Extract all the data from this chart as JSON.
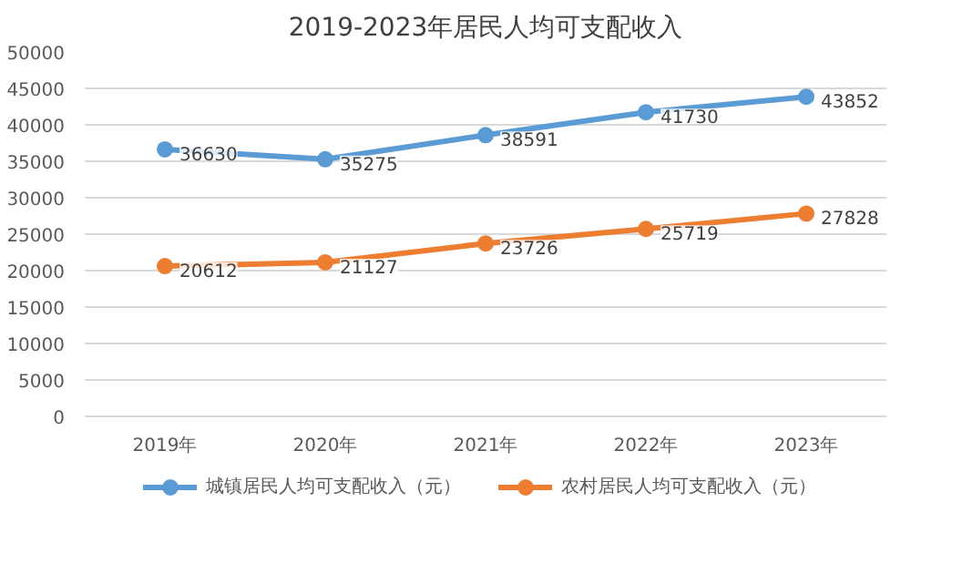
{
  "chart_data": {
    "type": "line",
    "title": "2019-2023年居民人均可支配收入",
    "categories": [
      "2019年",
      "2020年",
      "2021年",
      "2022年",
      "2023年"
    ],
    "series": [
      {
        "name": "城镇居民人均可支配收入（元）",
        "color": "#5b9bd5",
        "values": [
          36630,
          35275,
          38591,
          41730,
          43852
        ]
      },
      {
        "name": "农村居民人均可支配收入（元）",
        "color": "#ed7d31",
        "values": [
          20612,
          21127,
          23726,
          25719,
          27828
        ]
      }
    ],
    "ylim": [
      0,
      50000
    ],
    "yticks": [
      0,
      5000,
      10000,
      15000,
      20000,
      25000,
      30000,
      35000,
      40000,
      45000,
      50000
    ],
    "grid": "y",
    "legend": "bottom",
    "marker": "circle",
    "line_style": "solid",
    "data_labels": true
  }
}
